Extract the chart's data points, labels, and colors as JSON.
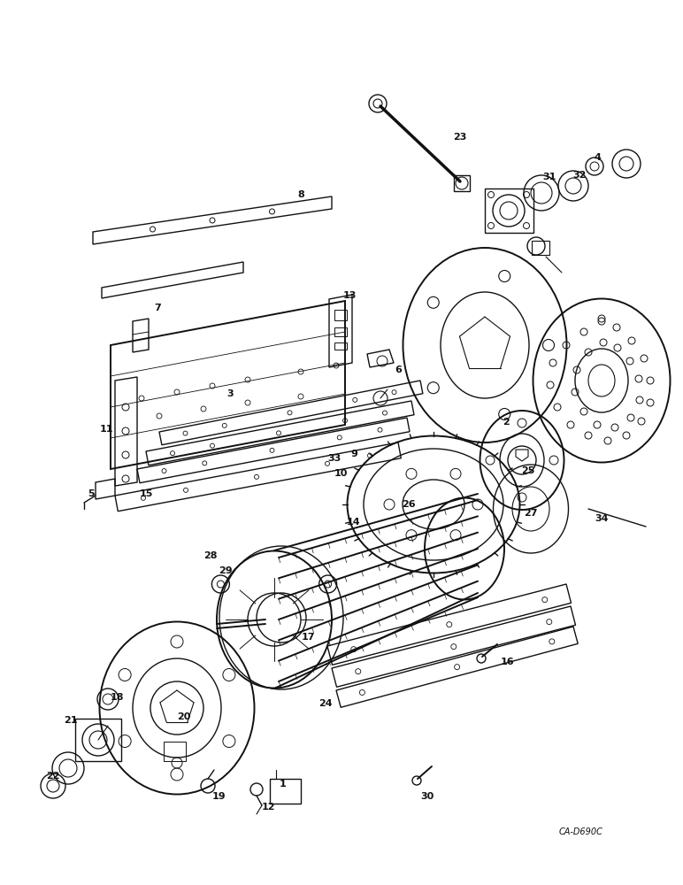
{
  "watermark": "CA-D690C",
  "bg_color": "#ffffff",
  "figsize": [
    7.72,
    10.0
  ],
  "dpi": 100
}
